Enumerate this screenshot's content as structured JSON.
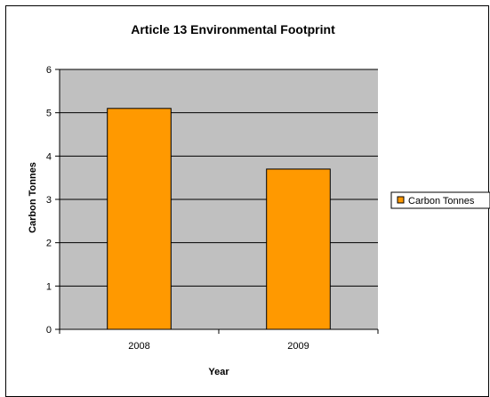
{
  "chart_data": {
    "type": "bar",
    "title": "Article 13 Environmental Footprint",
    "xlabel": "Year",
    "ylabel": "Carbon Tonnes",
    "categories": [
      "2008",
      "2009"
    ],
    "series": [
      {
        "name": "Carbon Tonnes",
        "values": [
          5.1,
          3.7
        ],
        "color": "#FF9900"
      }
    ],
    "ylim": [
      0,
      6
    ],
    "yticks": [
      "0",
      "1",
      "2",
      "3",
      "4",
      "5",
      "6"
    ],
    "grid": true,
    "plot_background": "#C0C0C0",
    "legend_position": "right"
  }
}
